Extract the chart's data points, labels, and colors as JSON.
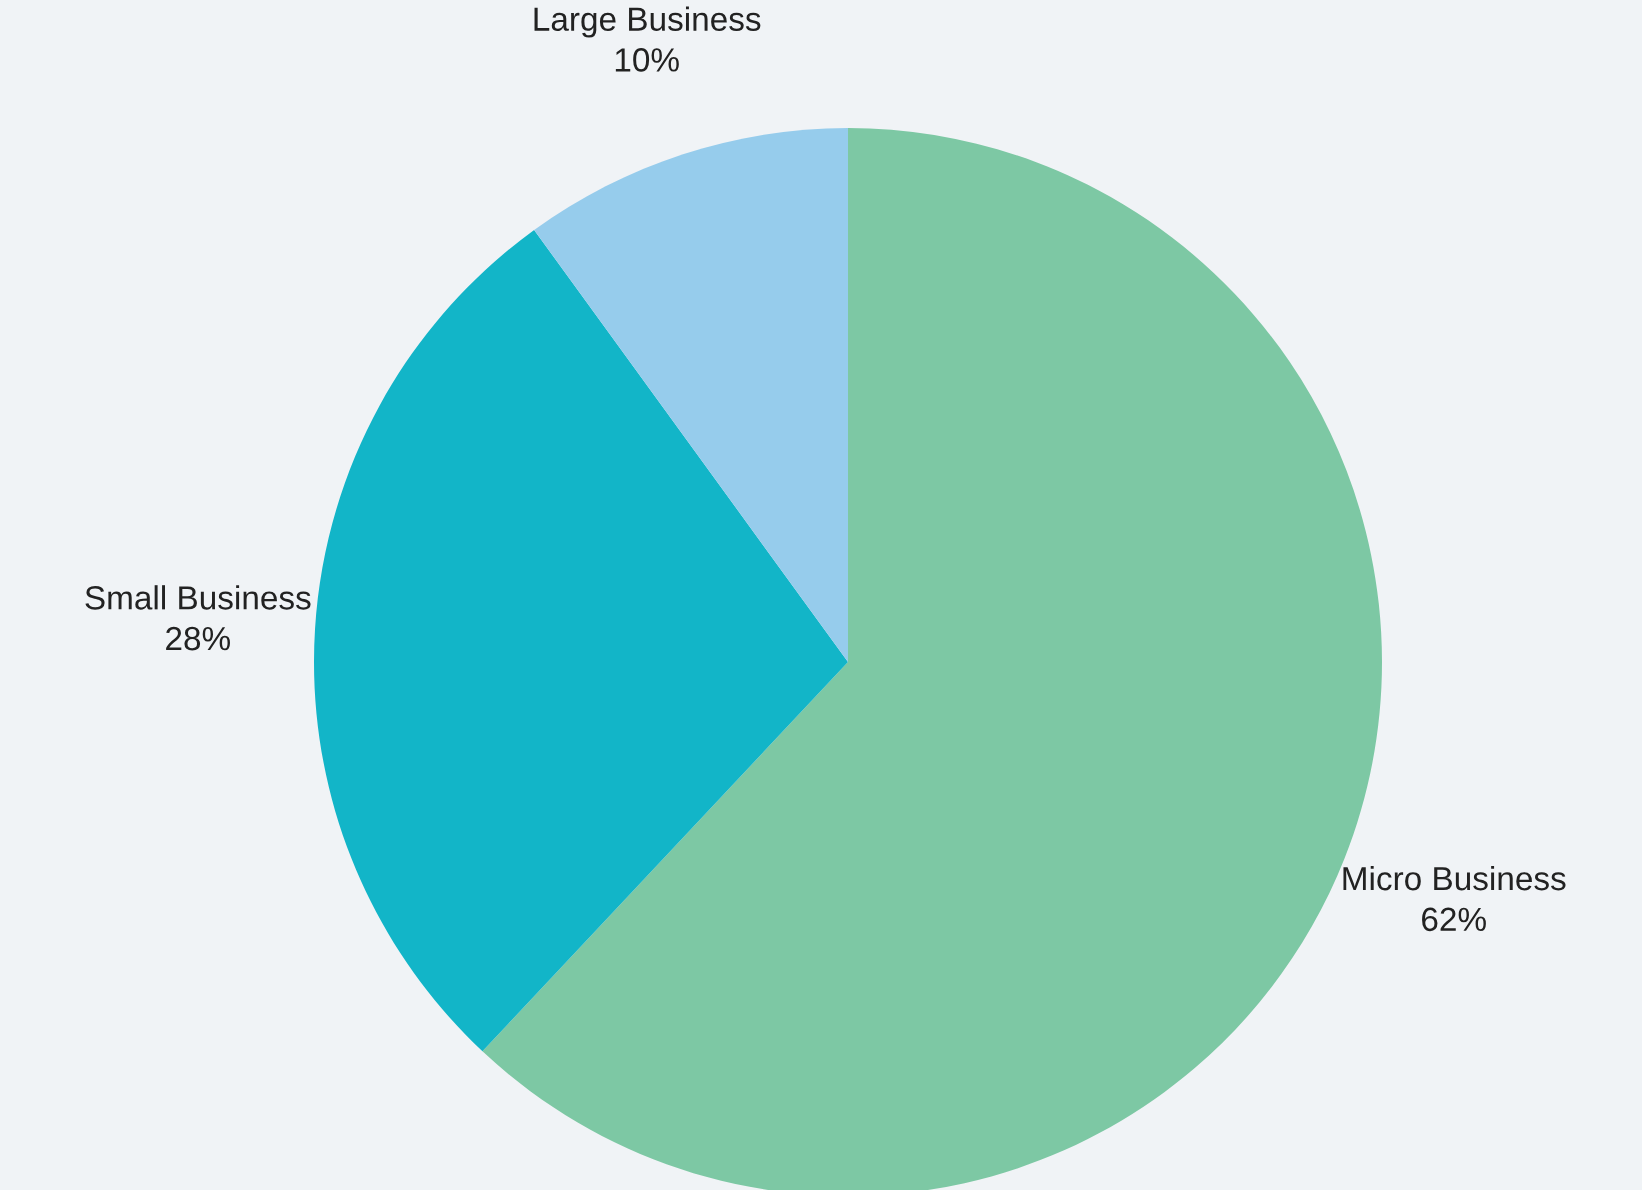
{
  "chart_data": {
    "type": "pie",
    "categories": [
      "Micro Business",
      "Small Business",
      "Large Business"
    ],
    "values": [
      62,
      28,
      10
    ],
    "value_labels": [
      "62%",
      "28%",
      "10%"
    ],
    "colors": [
      "#7dc8a4",
      "#12b5c8",
      "#96ccec"
    ],
    "legend": false
  }
}
